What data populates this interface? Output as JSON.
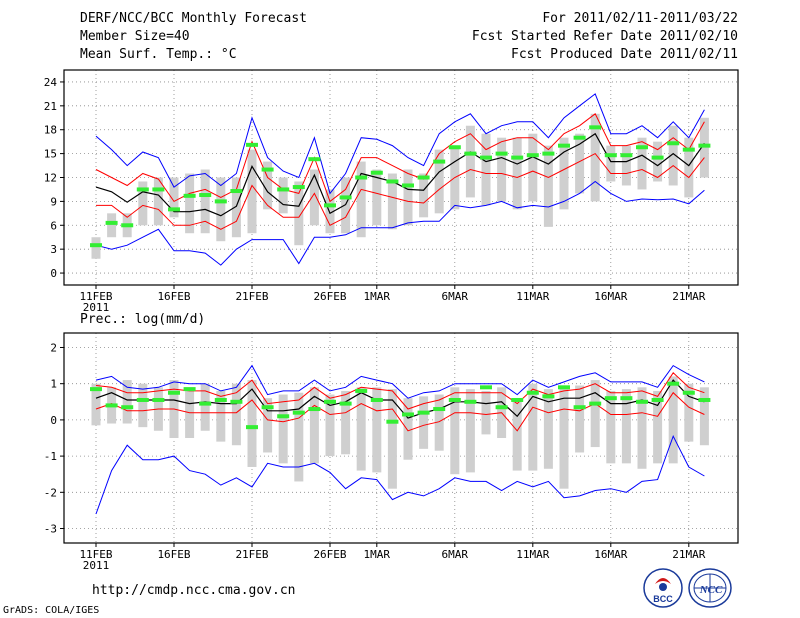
{
  "header": {
    "title": "DERF/NCC/BCC Monthly Forecast",
    "member_size": "Member Size=40",
    "variable": "Mean Surf. Temp.: °C",
    "forecast_period": "For 2011/02/11-2011/03/22",
    "refer_date": "Fcst Started Refer Date 2011/02/10",
    "produced_date": "Fcst Produced Date 2011/02/11"
  },
  "footer": {
    "url": "http://cmdp.ncc.cma.gov.cn",
    "credit": "GrADS: COLA/IGES",
    "logo_left_text": "BCC",
    "logo_right_text": "NCC"
  },
  "colors": {
    "max_min": "#0000ff",
    "spread": "#ff0000",
    "mean": "#000000",
    "bars": "#cfcfcf",
    "marker": "#33ee33"
  },
  "chart_data": [
    {
      "type": "line",
      "title": "Mean Surf. Temp.: °C",
      "x_tick_labels": [
        "11FEB",
        "16FEB",
        "21FEB",
        "26FEB",
        "1MAR",
        "6MAR",
        "11MAR",
        "16MAR",
        "21MAR"
      ],
      "x_tick_days": [
        0,
        5,
        10,
        15,
        18,
        23,
        28,
        33,
        38
      ],
      "x_year_label": "2011",
      "days": 40,
      "ylim": [
        -1.5,
        25.5
      ],
      "y_ticks": [
        0,
        3,
        6,
        9,
        12,
        15,
        18,
        21,
        24
      ],
      "max": [
        17.2,
        15.5,
        13.5,
        15.2,
        14.5,
        10.8,
        12.2,
        12.5,
        11.0,
        12.5,
        19.5,
        14.5,
        12.8,
        12.0,
        17.0,
        10.0,
        12.5,
        17.0,
        16.8,
        16.0,
        14.5,
        13.5,
        17.5,
        19.0,
        20.0,
        17.5,
        18.5,
        19.0,
        19.0,
        17.0,
        19.5,
        21.0,
        22.5,
        17.5,
        17.5,
        18.5,
        17.0,
        19.0,
        17.0,
        20.5
      ],
      "upper": [
        13.0,
        12.0,
        11.0,
        12.5,
        11.8,
        9.0,
        10.0,
        10.5,
        9.5,
        10.5,
        16.5,
        12.0,
        10.5,
        10.0,
        14.5,
        9.0,
        10.5,
        14.5,
        14.5,
        13.5,
        12.5,
        11.8,
        15.0,
        16.5,
        17.5,
        15.5,
        16.5,
        17.0,
        17.0,
        15.5,
        17.5,
        18.5,
        20.0,
        16.0,
        16.0,
        16.5,
        15.5,
        17.0,
        15.5,
        19.0
      ],
      "mean": [
        10.8,
        10.2,
        8.9,
        10.2,
        9.8,
        7.7,
        7.7,
        8.0,
        7.2,
        8.4,
        13.4,
        10.2,
        8.6,
        8.4,
        12.3,
        7.5,
        8.6,
        12.5,
        12.0,
        11.5,
        10.5,
        10.4,
        12.7,
        14.0,
        15.2,
        14.0,
        14.5,
        13.7,
        14.6,
        13.7,
        15.2,
        16.2,
        17.5,
        14.0,
        14.0,
        14.8,
        13.5,
        15.0,
        13.5,
        16.3
      ],
      "lower": [
        8.5,
        8.5,
        7.0,
        8.5,
        8.0,
        6.0,
        6.0,
        6.5,
        5.5,
        6.5,
        11.0,
        8.5,
        7.0,
        7.0,
        10.0,
        6.0,
        7.0,
        10.5,
        10.0,
        9.5,
        9.0,
        8.8,
        10.5,
        12.0,
        13.0,
        12.5,
        12.5,
        12.0,
        12.8,
        12.0,
        13.0,
        14.0,
        15.0,
        12.5,
        12.5,
        13.0,
        12.0,
        13.5,
        12.0,
        14.5
      ],
      "min": [
        3.5,
        3.0,
        3.5,
        4.5,
        5.5,
        2.8,
        2.8,
        2.5,
        1.0,
        3.0,
        4.2,
        4.2,
        4.2,
        1.2,
        4.5,
        4.5,
        4.8,
        5.7,
        5.7,
        5.7,
        6.3,
        6.5,
        6.5,
        8.5,
        8.2,
        8.5,
        9.0,
        8.2,
        8.5,
        8.3,
        9.0,
        10.0,
        11.5,
        10.0,
        9.0,
        9.3,
        9.2,
        9.3,
        8.7,
        10.4
      ],
      "box_low": [
        1.8,
        4.5,
        4.5,
        6.0,
        6.0,
        7.0,
        5.0,
        5.0,
        4.0,
        4.5,
        5.0,
        8.0,
        7.5,
        3.5,
        6.0,
        5.0,
        5.0,
        4.5,
        6.0,
        5.5,
        6.0,
        7.0,
        7.5,
        8.0,
        9.5,
        8.5,
        9.0,
        8.0,
        9.0,
        5.8,
        8.0,
        10.0,
        9.0,
        11.5,
        11.0,
        10.5,
        11.5,
        11.0,
        9.5,
        12.0
      ],
      "box_high": [
        4.5,
        7.5,
        7.5,
        11.5,
        12.0,
        12.0,
        12.5,
        13.0,
        12.0,
        12.0,
        15.5,
        14.0,
        12.0,
        11.5,
        13.0,
        10.5,
        12.0,
        14.0,
        13.0,
        12.5,
        13.0,
        12.5,
        15.5,
        16.0,
        18.5,
        17.5,
        17.0,
        17.0,
        17.5,
        16.0,
        17.0,
        17.5,
        20.0,
        16.0,
        16.0,
        17.0,
        16.5,
        18.5,
        17.0,
        19.5
      ],
      "marker": [
        3.5,
        6.3,
        6.0,
        10.5,
        10.5,
        8.0,
        9.7,
        9.8,
        9.0,
        10.3,
        16.1,
        13.0,
        10.5,
        10.8,
        14.3,
        8.5,
        9.5,
        12.0,
        12.6,
        11.5,
        11.0,
        12.0,
        14.0,
        15.8,
        15.0,
        14.5,
        15.0,
        14.5,
        14.8,
        15.0,
        16.0,
        17.0,
        18.3,
        14.8,
        14.8,
        15.8,
        14.5,
        16.3,
        15.5,
        16.0
      ]
    },
    {
      "type": "line",
      "title": "Prec.: log(mm/d)",
      "x_tick_labels": [
        "11FEB",
        "16FEB",
        "21FEB",
        "26FEB",
        "1MAR",
        "6MAR",
        "11MAR",
        "16MAR",
        "21MAR"
      ],
      "x_tick_days": [
        0,
        5,
        10,
        15,
        18,
        23,
        28,
        33,
        38
      ],
      "x_year_label": "2011",
      "days": 40,
      "ylim": [
        -3.4,
        2.4
      ],
      "y_ticks": [
        -3,
        -2,
        -1,
        0,
        1,
        2
      ],
      "max": [
        1.1,
        1.2,
        0.9,
        0.85,
        0.9,
        1.05,
        1.0,
        1.0,
        0.8,
        0.9,
        1.5,
        0.7,
        0.8,
        0.8,
        1.1,
        0.8,
        0.9,
        1.2,
        1.1,
        1.0,
        0.6,
        0.75,
        0.8,
        1.0,
        1.0,
        1.0,
        1.0,
        0.7,
        1.1,
        0.9,
        1.05,
        1.2,
        1.3,
        1.05,
        1.05,
        1.05,
        0.9,
        1.5,
        1.25,
        1.05
      ],
      "upper": [
        0.95,
        0.9,
        0.75,
        0.75,
        0.8,
        0.85,
        0.8,
        0.8,
        0.65,
        0.75,
        1.1,
        0.45,
        0.5,
        0.55,
        0.9,
        0.6,
        0.7,
        0.9,
        0.85,
        0.8,
        0.3,
        0.45,
        0.55,
        0.75,
        0.75,
        0.75,
        0.75,
        0.45,
        0.85,
        0.7,
        0.8,
        0.85,
        1.0,
        0.75,
        0.75,
        0.8,
        0.65,
        1.3,
        0.9,
        0.75
      ],
      "mean": [
        0.6,
        0.75,
        0.55,
        0.55,
        0.55,
        0.55,
        0.45,
        0.5,
        0.45,
        0.45,
        0.85,
        0.25,
        0.25,
        0.3,
        0.65,
        0.4,
        0.5,
        0.75,
        0.55,
        0.55,
        0.05,
        0.2,
        0.3,
        0.5,
        0.5,
        0.45,
        0.5,
        0.1,
        0.65,
        0.5,
        0.6,
        0.6,
        0.75,
        0.45,
        0.45,
        0.55,
        0.4,
        1.1,
        0.65,
        0.5
      ],
      "lower": [
        0.3,
        0.45,
        0.25,
        0.25,
        0.3,
        0.3,
        0.2,
        0.2,
        0.2,
        0.2,
        0.55,
        0.0,
        -0.05,
        0.05,
        0.4,
        0.15,
        0.2,
        0.45,
        0.25,
        0.3,
        -0.3,
        -0.15,
        -0.05,
        0.2,
        0.2,
        0.15,
        0.2,
        -0.3,
        0.35,
        0.2,
        0.3,
        0.25,
        0.45,
        0.15,
        0.15,
        0.2,
        0.1,
        0.75,
        0.35,
        0.15
      ],
      "min": [
        -2.6,
        -1.4,
        -0.7,
        -1.1,
        -1.1,
        -1.0,
        -1.4,
        -1.5,
        -1.8,
        -1.6,
        -1.85,
        -1.2,
        -1.3,
        -1.3,
        -1.2,
        -1.45,
        -1.9,
        -1.6,
        -1.65,
        -2.2,
        -2.0,
        -2.1,
        -1.9,
        -1.6,
        -1.7,
        -1.7,
        -1.95,
        -1.7,
        -1.85,
        -1.7,
        -2.15,
        -2.1,
        -1.95,
        -1.9,
        -2.0,
        -1.7,
        -1.65,
        -0.45,
        -1.3,
        -1.55
      ],
      "box_low": [
        -0.15,
        -0.1,
        -0.1,
        -0.2,
        -0.3,
        -0.5,
        -0.5,
        -0.3,
        -0.6,
        -0.7,
        -1.3,
        -0.9,
        -1.2,
        -1.7,
        -1.2,
        -1.0,
        -0.95,
        -1.4,
        -1.45,
        -1.9,
        -1.1,
        -0.8,
        -0.85,
        -1.5,
        -1.45,
        -0.4,
        -0.5,
        -1.4,
        -1.4,
        -1.35,
        -1.9,
        -0.9,
        -0.75,
        -1.2,
        -1.2,
        -1.35,
        -1.2,
        -1.2,
        -0.6,
        -0.7
      ],
      "box_high": [
        1.0,
        0.9,
        1.1,
        1.0,
        0.9,
        1.1,
        0.9,
        1.0,
        0.8,
        1.0,
        1.1,
        0.6,
        0.7,
        0.75,
        0.9,
        0.7,
        0.8,
        0.9,
        0.9,
        0.85,
        0.6,
        0.65,
        0.7,
        0.9,
        0.85,
        0.8,
        0.9,
        0.6,
        1.0,
        0.85,
        0.9,
        0.95,
        1.1,
        0.8,
        0.85,
        0.9,
        0.8,
        1.2,
        1.0,
        0.9
      ],
      "marker": [
        0.85,
        0.4,
        0.35,
        0.55,
        0.55,
        0.75,
        0.85,
        0.45,
        0.55,
        0.5,
        -0.2,
        0.35,
        0.1,
        0.2,
        0.3,
        0.5,
        0.45,
        0.8,
        0.55,
        -0.05,
        0.15,
        0.2,
        0.3,
        0.55,
        0.5,
        0.9,
        0.35,
        0.55,
        0.75,
        0.65,
        0.9,
        0.35,
        0.45,
        0.6,
        0.6,
        0.5,
        0.55,
        1.0,
        0.75,
        0.55
      ]
    }
  ]
}
